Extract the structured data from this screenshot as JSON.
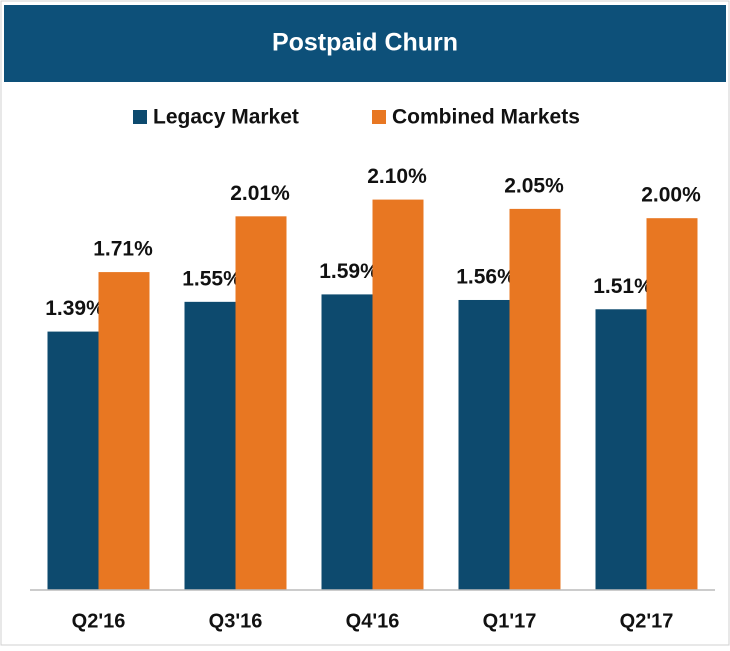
{
  "chart_data": {
    "type": "bar",
    "title": "Postpaid Churn",
    "categories": [
      "Q2'16",
      "Q3'16",
      "Q4'16",
      "Q1'17",
      "Q2'17"
    ],
    "series": [
      {
        "name": "Legacy Market",
        "color": "#0d4a6e",
        "values": [
          1.39,
          1.55,
          1.59,
          1.56,
          1.51
        ],
        "value_labels": [
          "1.39%",
          "1.55%",
          "1.59%",
          "1.56%",
          "1.51%"
        ]
      },
      {
        "name": "Combined Markets",
        "color": "#e87722",
        "values": [
          1.71,
          2.01,
          2.1,
          2.05,
          2.0
        ],
        "value_labels": [
          "1.71%",
          "2.01%",
          "2.10%",
          "2.05%",
          "2.00%"
        ]
      }
    ],
    "ylim": [
      0,
      2.2
    ],
    "legend": "top"
  }
}
